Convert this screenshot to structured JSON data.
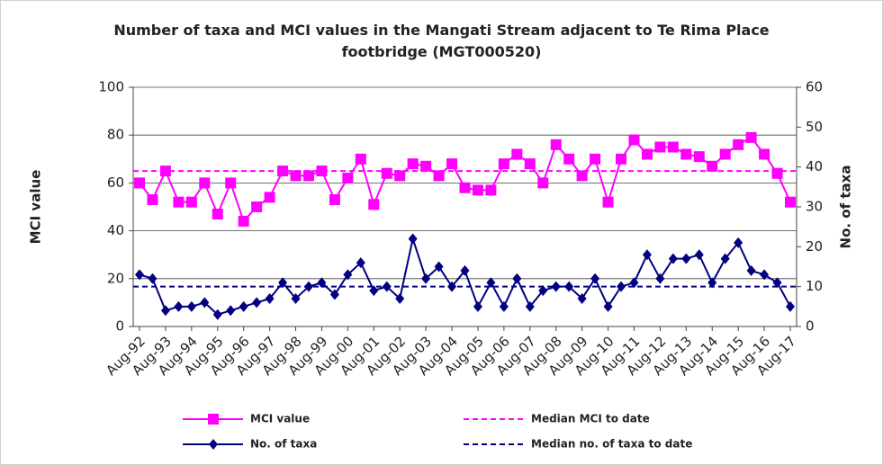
{
  "chart_data": {
    "type": "line",
    "title": "Number of taxa and MCI values in the Mangati Stream adjacent to Te Rima Place footbridge (MGT000520)",
    "ylabel": "MCI value",
    "y2label": "No. of taxa",
    "categories": [
      "Aug-92",
      null,
      "Aug-93",
      null,
      "Aug-94",
      null,
      "Aug-95",
      null,
      "Aug-96",
      null,
      "Aug-97",
      null,
      "Aug-98",
      null,
      "Aug-99",
      null,
      "Aug-00",
      null,
      "Aug-01",
      null,
      "Aug-02",
      null,
      "Aug-03",
      null,
      "Aug-04",
      null,
      "Aug-05",
      null,
      "Aug-06",
      null,
      "Aug-07",
      null,
      "Aug-08",
      null,
      "Aug-09",
      null,
      "Aug-10",
      null,
      "Aug-11",
      null,
      "Aug-12",
      null,
      "Aug-13",
      null,
      "Aug-14",
      null,
      "Aug-15",
      null,
      "Aug-16",
      null,
      "Aug-17"
    ],
    "series": [
      {
        "name": "MCI value",
        "color": "#ff00ff",
        "marker": "square",
        "values": [
          60,
          53,
          65,
          52,
          52,
          60,
          47,
          60,
          44,
          50,
          54,
          65,
          63,
          63,
          65,
          53,
          62,
          70,
          51,
          64,
          63,
          68,
          67,
          63,
          68,
          58,
          57,
          57,
          68,
          72,
          68,
          60,
          76,
          70,
          63,
          70,
          52,
          70,
          78,
          72,
          75,
          75,
          72,
          71,
          67,
          72,
          76,
          79,
          72,
          64,
          52
        ]
      },
      {
        "name": "No. of taxa",
        "color": "#000080",
        "marker": "diamond",
        "axis": "y2",
        "values": [
          13,
          12,
          4,
          5,
          5,
          6,
          3,
          4,
          5,
          6,
          7,
          11,
          7,
          10,
          11,
          8,
          13,
          16,
          9,
          10,
          7,
          22,
          12,
          15,
          10,
          14,
          5,
          11,
          5,
          12,
          5,
          9,
          10,
          10,
          7,
          12,
          5,
          10,
          11,
          18,
          12,
          17,
          17,
          18,
          11,
          17,
          21,
          14,
          13,
          11,
          5
        ]
      }
    ],
    "medians": [
      {
        "name": "Median MCI to date",
        "color": "#ff00ff",
        "value": 65
      },
      {
        "name": "Median no. of taxa to date",
        "color": "#000080",
        "value": 10,
        "axis": "y2"
      }
    ],
    "ylim": [
      0,
      100
    ],
    "yticks": [
      0,
      20,
      40,
      60,
      80,
      100
    ],
    "y2lim": [
      0,
      60
    ],
    "y2ticks": [
      0,
      10,
      20,
      30,
      40,
      50,
      60
    ],
    "grid": true
  }
}
